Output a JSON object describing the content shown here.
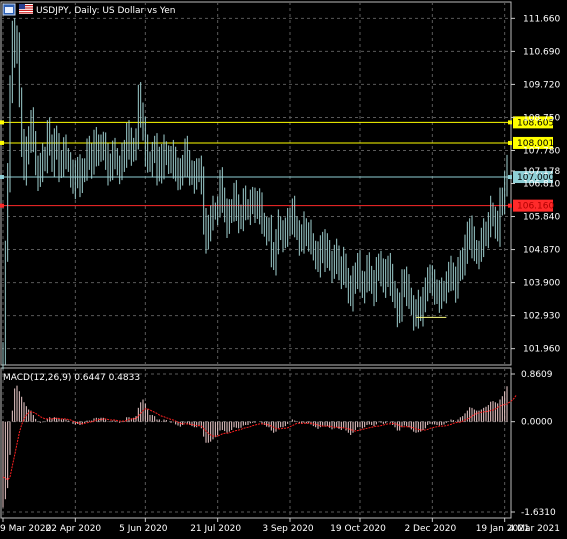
{
  "header": {
    "title": "USDJPY, Daily:  US Dollar vs Yen",
    "macd_label": "MACD(12,26,9) 0.6447 0.4833"
  },
  "icons": {
    "window_icon": "window-icon",
    "flag_icon": "us-flag-icon"
  },
  "colors": {
    "background": "#000000",
    "grid": "#5a5a5a",
    "candle": "#9fd0d0",
    "yellow_line": "#ffff00",
    "red_line": "#ff2a2a",
    "cyan_line": "#8fcfd6",
    "hist": "#f2d0d0",
    "signal": "#ff2020"
  },
  "chart_data": [
    {
      "type": "candlestick",
      "symbol": "USDJPY",
      "timeframe": "Daily",
      "ylim": [
        101.48,
        112.14
      ],
      "y_ticks": [
        "111.660",
        "110.690",
        "109.720",
        "108.750",
        "107.780",
        "107.178",
        "106.810",
        "105.840",
        "104.870",
        "103.900",
        "102.930",
        "101.960"
      ],
      "x_ticks": [
        "9 Mar 2020",
        "22 Apr 2020",
        "5 Jun 2020",
        "21 Jul 2020",
        "3 Sep 2020",
        "19 Oct 2020",
        "2 Dec 2020",
        "19 Jan 2021",
        "4 Mar 2021"
      ],
      "grid": true,
      "series": {
        "close": [
          101.9,
          104.8,
          107.0,
          109.5,
          111.3,
          110.7,
          111.0,
          109.3,
          108.0,
          107.2,
          107.7,
          108.2,
          108.6,
          108.1,
          107.3,
          107.0,
          107.3,
          107.5,
          107.6,
          108.3,
          108.0,
          107.4,
          108.1,
          107.8,
          107.3,
          107.5,
          107.8,
          107.6,
          107.4,
          107.1,
          106.8,
          107.0,
          107.3,
          106.9,
          107.1,
          107.3,
          107.8,
          107.5,
          107.4,
          108.1,
          107.8,
          107.7,
          108.0,
          107.9,
          107.5,
          107.2,
          107.4,
          107.7,
          107.6,
          107.3,
          107.2,
          107.6,
          107.6,
          108.3,
          108.0,
          107.7,
          107.9,
          108.1,
          109.3,
          108.9,
          108.4,
          107.8,
          107.5,
          107.4,
          107.7,
          107.8,
          107.2,
          107.6,
          107.3,
          107.8,
          107.6,
          107.5,
          107.4,
          107.6,
          107.2,
          107.1,
          107.0,
          107.4,
          107.8,
          107.3,
          107.2,
          107.1,
          107.0,
          107.1,
          107.3,
          106.9,
          105.6,
          105.2,
          105.6,
          105.8,
          106.0,
          106.0,
          106.1,
          106.8,
          106.4,
          106.0,
          105.7,
          105.9,
          106.1,
          106.5,
          106.0,
          105.8,
          105.9,
          106.3,
          106.1,
          106.0,
          106.3,
          106.2,
          106.1,
          106.3,
          106.1,
          105.7,
          105.5,
          105.4,
          105.4,
          104.8,
          104.6,
          105.1,
          105.6,
          105.4,
          105.2,
          105.4,
          105.6,
          105.8,
          106.0,
          105.6,
          105.4,
          105.1,
          105.2,
          105.5,
          105.3,
          105.3,
          105.1,
          104.8,
          104.7,
          104.5,
          104.8,
          105.1,
          104.7,
          104.9,
          104.5,
          104.3,
          104.6,
          104.7,
          104.3,
          104.2,
          104.5,
          104.0,
          103.7,
          103.5,
          103.9,
          104.2,
          104.4,
          104.0,
          103.7,
          103.9,
          104.3,
          104.1,
          103.9,
          103.7,
          104.2,
          104.5,
          104.2,
          103.9,
          104.1,
          104.4,
          104.0,
          103.7,
          103.4,
          103.0,
          103.2,
          103.8,
          104.0,
          103.7,
          103.5,
          103.2,
          102.9,
          103.0,
          103.2,
          103.1,
          103.4,
          103.6,
          104.1,
          104.0,
          103.8,
          103.7,
          103.6,
          103.5,
          103.6,
          103.7,
          103.9,
          104.1,
          104.2,
          104.0,
          103.8,
          104.2,
          104.6,
          104.4,
          104.9,
          105.2,
          105.5,
          105.1,
          104.9,
          104.7,
          104.8,
          105.1,
          105.3,
          105.4,
          105.6,
          106.0,
          105.8,
          105.6,
          105.4,
          106.2,
          106.4,
          106.8,
          107.2
        ],
        "x_label_positions": [
          0,
          31,
          61,
          92,
          123,
          153,
          184,
          215,
          244
        ]
      },
      "horizontal_levels": [
        {
          "value": 108.605,
          "label": "108.605",
          "color": "yellow"
        },
        {
          "value": 108.001,
          "label": "108.001",
          "color": "yellow"
        },
        {
          "value": 107.0,
          "label": "107.000",
          "color": "cyan"
        },
        {
          "value": 106.16,
          "label": "106.160",
          "color": "red"
        }
      ],
      "low_marker": 102.88
    },
    {
      "type": "macd",
      "params": "MACD(12,26,9)",
      "value_main": 0.6447,
      "value_signal": 0.4833,
      "ylim": [
        -1.631,
        0.8609
      ],
      "y_ticks": [
        "0.8609",
        "0.0000",
        "-1.6310"
      ],
      "histogram": [
        -1.55,
        -1.4,
        -1.2,
        -0.6,
        0.2,
        0.6,
        0.65,
        0.55,
        0.45,
        0.35,
        0.28,
        0.22,
        0.2,
        0.12,
        0.05,
        0.0,
        -0.02,
        -0.01,
        0.0,
        0.05,
        0.08,
        0.06,
        0.08,
        0.07,
        0.05,
        0.04,
        0.05,
        0.04,
        0.02,
        0.0,
        -0.04,
        -0.05,
        -0.04,
        -0.06,
        -0.05,
        -0.03,
        0.02,
        0.02,
        0.02,
        0.06,
        0.07,
        0.06,
        0.07,
        0.07,
        0.04,
        0.01,
        0.0,
        0.02,
        0.02,
        0.0,
        -0.02,
        0.0,
        0.01,
        0.08,
        0.08,
        0.06,
        0.07,
        0.1,
        0.25,
        0.35,
        0.4,
        0.33,
        0.22,
        0.12,
        0.12,
        0.1,
        0.04,
        0.04,
        0.01,
        0.04,
        0.03,
        0.0,
        -0.02,
        -0.01,
        -0.05,
        -0.07,
        -0.09,
        -0.06,
        -0.02,
        -0.05,
        -0.06,
        -0.08,
        -0.1,
        -0.1,
        -0.08,
        -0.12,
        -0.27,
        -0.38,
        -0.38,
        -0.36,
        -0.32,
        -0.28,
        -0.24,
        -0.16,
        -0.15,
        -0.17,
        -0.2,
        -0.18,
        -0.15,
        -0.1,
        -0.11,
        -0.12,
        -0.11,
        -0.07,
        -0.06,
        -0.06,
        -0.03,
        -0.02,
        -0.02,
        0.0,
        0.0,
        -0.03,
        -0.06,
        -0.09,
        -0.1,
        -0.16,
        -0.2,
        -0.18,
        -0.12,
        -0.1,
        -0.1,
        -0.08,
        -0.04,
        0.0,
        0.04,
        0.02,
        0.0,
        -0.03,
        -0.04,
        -0.02,
        -0.03,
        -0.03,
        -0.05,
        -0.08,
        -0.1,
        -0.13,
        -0.1,
        -0.07,
        -0.09,
        -0.08,
        -0.11,
        -0.14,
        -0.12,
        -0.1,
        -0.13,
        -0.15,
        -0.12,
        -0.16,
        -0.2,
        -0.24,
        -0.2,
        -0.15,
        -0.1,
        -0.1,
        -0.12,
        -0.1,
        -0.06,
        -0.05,
        -0.06,
        -0.08,
        -0.05,
        -0.01,
        -0.02,
        -0.04,
        -0.03,
        0.0,
        -0.02,
        -0.06,
        -0.1,
        -0.16,
        -0.16,
        -0.1,
        -0.07,
        -0.08,
        -0.1,
        -0.14,
        -0.18,
        -0.2,
        -0.19,
        -0.18,
        -0.15,
        -0.12,
        -0.06,
        -0.04,
        -0.04,
        -0.05,
        -0.06,
        -0.07,
        -0.06,
        -0.05,
        -0.02,
        0.01,
        0.04,
        0.03,
        0.01,
        0.04,
        0.08,
        0.1,
        0.15,
        0.2,
        0.26,
        0.25,
        0.22,
        0.2,
        0.2,
        0.22,
        0.25,
        0.27,
        0.3,
        0.36,
        0.37,
        0.35,
        0.33,
        0.4,
        0.46,
        0.55,
        0.64
      ],
      "signal": [
        -1.0,
        -1.02,
        -1.05,
        -1.0,
        -0.8,
        -0.6,
        -0.4,
        -0.2,
        -0.05,
        0.05,
        0.12,
        0.16,
        0.18,
        0.17,
        0.15,
        0.12,
        0.09,
        0.07,
        0.05,
        0.05,
        0.05,
        0.05,
        0.06,
        0.06,
        0.06,
        0.05,
        0.05,
        0.05,
        0.04,
        0.03,
        0.01,
        -0.01,
        -0.02,
        -0.03,
        -0.04,
        -0.03,
        -0.02,
        -0.01,
        0.0,
        0.01,
        0.03,
        0.04,
        0.04,
        0.05,
        0.05,
        0.04,
        0.03,
        0.03,
        0.03,
        0.02,
        0.01,
        0.01,
        0.01,
        0.02,
        0.04,
        0.05,
        0.05,
        0.06,
        0.1,
        0.15,
        0.2,
        0.23,
        0.23,
        0.21,
        0.19,
        0.17,
        0.15,
        0.12,
        0.1,
        0.09,
        0.07,
        0.06,
        0.04,
        0.03,
        0.01,
        -0.01,
        -0.03,
        -0.04,
        -0.04,
        -0.04,
        -0.05,
        -0.05,
        -0.06,
        -0.07,
        -0.07,
        -0.08,
        -0.12,
        -0.17,
        -0.21,
        -0.24,
        -0.26,
        -0.26,
        -0.26,
        -0.24,
        -0.22,
        -0.21,
        -0.21,
        -0.2,
        -0.19,
        -0.17,
        -0.16,
        -0.15,
        -0.14,
        -0.12,
        -0.11,
        -0.1,
        -0.09,
        -0.07,
        -0.06,
        -0.05,
        -0.04,
        -0.04,
        -0.04,
        -0.05,
        -0.06,
        -0.08,
        -0.1,
        -0.12,
        -0.13,
        -0.13,
        -0.12,
        -0.12,
        -0.11,
        -0.09,
        -0.07,
        -0.05,
        -0.03,
        -0.03,
        -0.03,
        -0.03,
        -0.03,
        -0.03,
        -0.03,
        -0.04,
        -0.05,
        -0.06,
        -0.07,
        -0.08,
        -0.08,
        -0.08,
        -0.08,
        -0.09,
        -0.1,
        -0.1,
        -0.1,
        -0.11,
        -0.11,
        -0.12,
        -0.13,
        -0.14,
        -0.16,
        -0.17,
        -0.16,
        -0.15,
        -0.14,
        -0.13,
        -0.12,
        -0.11,
        -0.1,
        -0.09,
        -0.08,
        -0.08,
        -0.07,
        -0.06,
        -0.05,
        -0.04,
        -0.04,
        -0.03,
        -0.04,
        -0.05,
        -0.07,
        -0.09,
        -0.09,
        -0.09,
        -0.09,
        -0.1,
        -0.11,
        -0.13,
        -0.14,
        -0.15,
        -0.15,
        -0.15,
        -0.14,
        -0.12,
        -0.11,
        -0.1,
        -0.09,
        -0.08,
        -0.08,
        -0.08,
        -0.07,
        -0.06,
        -0.05,
        -0.03,
        -0.02,
        -0.01,
        -0.01,
        0.01,
        0.03,
        0.05,
        0.07,
        0.1,
        0.13,
        0.15,
        0.16,
        0.17,
        0.18,
        0.18,
        0.19,
        0.2,
        0.21,
        0.23,
        0.26,
        0.28,
        0.3,
        0.31,
        0.32,
        0.35,
        0.38,
        0.42,
        0.48
      ]
    }
  ]
}
